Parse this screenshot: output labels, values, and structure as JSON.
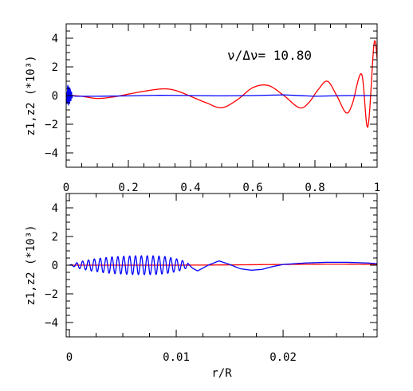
{
  "figure": {
    "annotation": "ν/Δν= 10.80"
  },
  "chart_data": [
    {
      "type": "line",
      "id": "top",
      "ylabel": "z1,z2 (*10³)",
      "xlabel": "",
      "xlim": [
        0,
        1
      ],
      "ylim": [
        -5,
        5
      ],
      "x_ticks": [
        0,
        0.2,
        0.4,
        0.6,
        0.8,
        1
      ],
      "x_tick_labels": [
        "0",
        "0.2",
        "0.4",
        "0.6",
        "0.8",
        "1"
      ],
      "y_ticks": [
        -4,
        -2,
        0,
        2,
        4
      ],
      "y_tick_labels": [
        "−4",
        "−2",
        "0",
        "2",
        "4"
      ],
      "grid": false,
      "series": [
        {
          "color": "#ff0000",
          "x": [
            0.0,
            0.02,
            0.05,
            0.1,
            0.15,
            0.2,
            0.25,
            0.3,
            0.33,
            0.36,
            0.4,
            0.45,
            0.5,
            0.55,
            0.6,
            0.65,
            0.7,
            0.75,
            0.78,
            0.81,
            0.84,
            0.87,
            0.9,
            0.92,
            0.95,
            0.97,
            0.99,
            1.0
          ],
          "y": [
            0.0,
            0.0,
            -0.05,
            -0.2,
            -0.1,
            0.1,
            0.3,
            0.45,
            0.45,
            0.3,
            -0.05,
            -0.5,
            -0.85,
            -0.3,
            0.55,
            0.7,
            0.0,
            -0.85,
            -0.5,
            0.4,
            1.0,
            0.0,
            -1.2,
            -0.6,
            1.5,
            -2.2,
            3.6,
            2.6
          ]
        },
        {
          "color": "#0000ff",
          "x": [
            0.0,
            0.004,
            0.008,
            0.012,
            0.016,
            0.02,
            0.03,
            0.05,
            0.1,
            0.2,
            0.3,
            0.4,
            0.5,
            0.6,
            0.7,
            0.8,
            0.9,
            1.0
          ],
          "y": [
            0.0,
            0.7,
            -0.6,
            0.5,
            -0.3,
            0.1,
            -0.05,
            -0.05,
            -0.05,
            -0.02,
            0.02,
            0.0,
            -0.02,
            0.0,
            0.05,
            -0.05,
            0.0,
            0.0
          ]
        }
      ]
    },
    {
      "type": "line",
      "id": "bottom",
      "ylabel": "z1,z2 (*10³)",
      "xlabel": "r/R",
      "xlim": [
        -0.0003,
        0.0288
      ],
      "ylim": [
        -5,
        5
      ],
      "x_ticks": [
        0,
        0.01,
        0.02
      ],
      "x_tick_labels": [
        "0",
        "0.01",
        "0.02"
      ],
      "y_ticks": [
        -4,
        -2,
        0,
        2,
        4
      ],
      "y_tick_labels": [
        "−4",
        "−2",
        "0",
        "2",
        "4"
      ],
      "grid": false,
      "series": [
        {
          "color": "#ff0000",
          "x": [
            0.0,
            0.005,
            0.01,
            0.015,
            0.02,
            0.025,
            0.0288
          ],
          "y": [
            0.0,
            0.0,
            0.0,
            0.02,
            0.05,
            0.07,
            0.05
          ]
        },
        {
          "color": "#0000ff",
          "model": "damped-oscillation",
          "oscillation_period": 0.00055,
          "envelope_x": [
            0.0,
            0.001,
            0.002,
            0.003,
            0.004,
            0.005,
            0.006,
            0.007,
            0.008,
            0.009,
            0.01,
            0.0105,
            0.011
          ],
          "envelope_y": [
            0.0,
            0.25,
            0.4,
            0.5,
            0.58,
            0.62,
            0.65,
            0.66,
            0.65,
            0.6,
            0.45,
            0.35,
            0.2
          ],
          "x": [
            0.011,
            0.0115,
            0.012,
            0.013,
            0.014,
            0.015,
            0.016,
            0.017,
            0.018,
            0.019,
            0.02,
            0.022,
            0.024,
            0.026,
            0.028,
            0.0288
          ],
          "y": [
            0.2,
            -0.2,
            -0.4,
            0.0,
            0.3,
            0.05,
            -0.25,
            -0.35,
            -0.3,
            -0.1,
            0.05,
            0.15,
            0.2,
            0.2,
            0.15,
            0.1
          ]
        }
      ]
    }
  ]
}
